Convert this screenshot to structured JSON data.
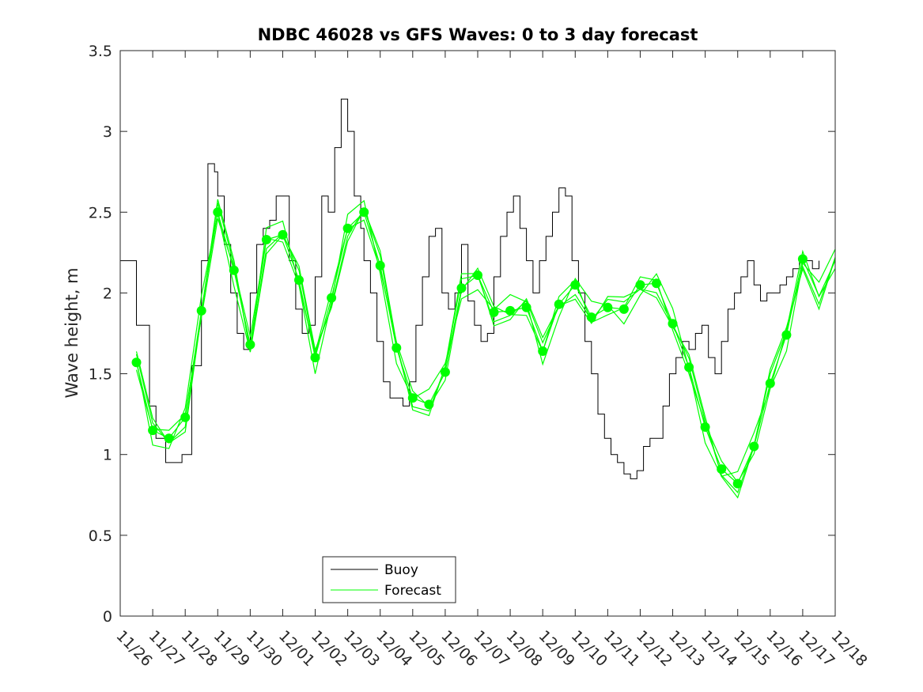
{
  "chart_data": {
    "type": "line",
    "title": "NDBC 46028 vs GFS Waves: 0 to 3 day forecast",
    "xlabel": "",
    "ylabel": "Wave height, m",
    "xlim": [
      0,
      22
    ],
    "ylim": [
      0,
      3.5
    ],
    "x_tick_labels": [
      "11/26",
      "11/27",
      "11/28",
      "11/29",
      "11/30",
      "12/01",
      "12/02",
      "12/03",
      "12/04",
      "12/05",
      "12/06",
      "12/07",
      "12/08",
      "12/09",
      "12/10",
      "12/11",
      "12/12",
      "12/13",
      "12/14",
      "12/15",
      "12/16",
      "12/17",
      "12/18"
    ],
    "y_ticks": [
      0,
      0.5,
      1,
      1.5,
      2,
      2.5,
      3,
      3.5
    ],
    "y_tick_labels": [
      "0",
      "0.5",
      "1",
      "1.5",
      "2",
      "2.5",
      "3",
      "3.5"
    ],
    "grid": false,
    "legend": {
      "position": "bottom-center",
      "entries": [
        "Buoy",
        "Forecast"
      ]
    },
    "colors": {
      "buoy": "#000000",
      "forecast": "#00ff00"
    },
    "series": [
      {
        "name": "Buoy",
        "x_unit": "days since 11/26",
        "x": [
          0,
          0.5,
          0.9,
          1.1,
          1.4,
          1.7,
          1.9,
          2.2,
          2.5,
          2.7,
          2.9,
          3.0,
          3.2,
          3.4,
          3.6,
          3.8,
          4.0,
          4.2,
          4.4,
          4.6,
          4.8,
          5.0,
          5.2,
          5.4,
          5.6,
          5.8,
          6.0,
          6.2,
          6.4,
          6.6,
          6.8,
          7.0,
          7.2,
          7.4,
          7.5,
          7.7,
          7.9,
          8.1,
          8.3,
          8.5,
          8.7,
          8.9,
          9.1,
          9.3,
          9.5,
          9.7,
          9.9,
          10.1,
          10.3,
          10.5,
          10.7,
          10.9,
          11.1,
          11.3,
          11.5,
          11.7,
          11.9,
          12.1,
          12.3,
          12.5,
          12.7,
          12.9,
          13.1,
          13.3,
          13.5,
          13.7,
          13.9,
          14.1,
          14.3,
          14.5,
          14.7,
          14.9,
          15.1,
          15.3,
          15.5,
          15.7,
          15.9,
          16.1,
          16.3,
          16.5,
          16.7,
          16.9,
          17.1,
          17.3,
          17.5,
          17.7,
          17.9,
          18.1,
          18.3,
          18.5,
          18.7,
          18.9,
          19.1,
          19.3,
          19.5,
          19.7,
          19.9,
          20.1,
          20.3,
          20.5,
          20.7,
          20.9,
          21.1,
          21.3,
          21.5
        ],
        "y": [
          2.2,
          1.8,
          1.3,
          1.1,
          0.95,
          0.95,
          1.0,
          1.55,
          2.2,
          2.8,
          2.75,
          2.6,
          2.3,
          2.0,
          1.75,
          1.65,
          2.0,
          2.3,
          2.4,
          2.45,
          2.6,
          2.6,
          2.2,
          1.9,
          1.75,
          1.8,
          2.1,
          2.6,
          2.5,
          2.9,
          3.2,
          3.0,
          2.6,
          2.4,
          2.2,
          2.0,
          1.7,
          1.45,
          1.35,
          1.35,
          1.3,
          1.45,
          1.8,
          2.1,
          2.35,
          2.4,
          2.0,
          1.9,
          2.0,
          2.3,
          1.95,
          1.8,
          1.7,
          1.75,
          2.1,
          2.35,
          2.5,
          2.6,
          2.4,
          2.2,
          2.0,
          2.2,
          2.35,
          2.5,
          2.65,
          2.6,
          2.2,
          2.0,
          1.7,
          1.5,
          1.25,
          1.1,
          1.0,
          0.95,
          0.88,
          0.85,
          0.9,
          1.05,
          1.1,
          1.1,
          1.3,
          1.5,
          1.6,
          1.7,
          1.65,
          1.75,
          1.8,
          1.6,
          1.5,
          1.7,
          1.9,
          2.0,
          2.1,
          2.2,
          2.05,
          1.95,
          2.0,
          2.0,
          2.05,
          2.1,
          2.15,
          2.2,
          2.2,
          2.15,
          2.2
        ]
      },
      {
        "name": "Forecast",
        "x_unit": "days since 11/26",
        "x": [
          0.5,
          1.0,
          1.5,
          2.0,
          2.5,
          3.0,
          3.5,
          4.0,
          4.5,
          5.0,
          5.5,
          6.0,
          6.5,
          7.0,
          7.5,
          8.0,
          8.5,
          9.0,
          9.5,
          10.0,
          10.5,
          11.0,
          11.5,
          12.0,
          12.5,
          13.0,
          13.5,
          14.0,
          14.5,
          15.0,
          15.5,
          16.0,
          16.5,
          17.0,
          17.5,
          18.0,
          18.5,
          19.0,
          19.5,
          20.0,
          20.5,
          21.0,
          21.5,
          22.0
        ],
        "y": [
          1.57,
          1.15,
          1.1,
          1.23,
          1.89,
          2.5,
          2.14,
          1.68,
          2.33,
          2.36,
          2.08,
          1.6,
          1.97,
          2.4,
          2.5,
          2.17,
          1.66,
          1.35,
          1.31,
          1.51,
          2.03,
          2.11,
          1.88,
          1.89,
          1.91,
          1.64,
          1.93,
          2.05,
          1.85,
          1.91,
          1.9,
          2.05,
          2.06,
          1.81,
          1.54,
          1.17,
          0.91,
          0.82,
          1.05,
          1.44,
          1.74,
          2.21,
          1.98,
          2.2
        ],
        "ensemble_offsets": [
          0,
          0.06,
          -0.05,
          0.1,
          -0.09
        ]
      }
    ],
    "markers": {
      "name": "Forecast analysis points",
      "x": [
        0.5,
        1.0,
        1.5,
        2.0,
        2.5,
        3.0,
        3.5,
        4.0,
        4.5,
        5.0,
        5.5,
        6.0,
        6.5,
        7.0,
        7.5,
        8.0,
        8.5,
        9.0,
        9.5,
        10.0,
        10.5,
        11.0,
        11.5,
        12.0,
        12.5,
        13.0,
        13.5,
        14.0,
        14.5,
        15.0,
        15.5,
        16.0,
        16.5,
        17.0,
        17.5,
        18.0,
        18.5,
        19.0,
        19.5,
        20.0,
        20.5,
        21.0
      ],
      "y": [
        1.57,
        1.15,
        1.1,
        1.23,
        1.89,
        2.5,
        2.14,
        1.68,
        2.33,
        2.36,
        2.08,
        1.6,
        1.97,
        2.4,
        2.5,
        2.17,
        1.66,
        1.35,
        1.31,
        1.51,
        2.03,
        2.11,
        1.88,
        1.89,
        1.91,
        1.64,
        1.93,
        2.05,
        1.85,
        1.91,
        1.9,
        2.05,
        2.06,
        1.81,
        1.54,
        1.17,
        0.91,
        0.82,
        1.05,
        1.44,
        1.74,
        2.21
      ]
    }
  }
}
